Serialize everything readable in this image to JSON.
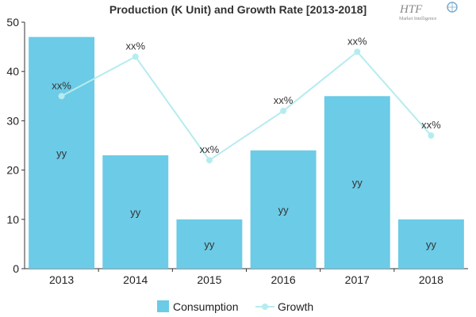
{
  "chart_data": {
    "type": "bar",
    "title": "Production (K Unit) and Growth Rate [2013-2018]",
    "categories": [
      "2013",
      "2014",
      "2015",
      "2016",
      "2017",
      "2018"
    ],
    "ylim": [
      0,
      50
    ],
    "yticks": [
      "0",
      "10",
      "20",
      "30",
      "40",
      "50"
    ],
    "grid": false,
    "legend_position": "bottom-center",
    "series": [
      {
        "name": "Consumption",
        "type": "bar",
        "color": "#6ccbe6",
        "values": [
          47,
          23,
          10,
          24,
          35,
          10
        ],
        "labels": [
          "yy",
          "yy",
          "yy",
          "yy",
          "yy",
          "yy"
        ]
      },
      {
        "name": "Growth",
        "type": "line",
        "color": "#b5ecef",
        "values": [
          35,
          43,
          22,
          32,
          44,
          27
        ],
        "labels": [
          "xx%",
          "xx%",
          "xx%",
          "xx%",
          "xx%",
          "xx%"
        ]
      }
    ]
  },
  "logo": {
    "name": "htf-logo-icon",
    "text": "HTF",
    "subtext": "Market Intelligence"
  }
}
